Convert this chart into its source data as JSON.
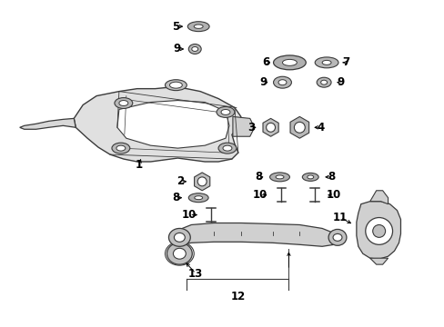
{
  "background_color": "#ffffff",
  "line_color": "#4a4a4a",
  "text_color": "#000000",
  "figsize": [
    4.89,
    3.6
  ],
  "dpi": 100
}
